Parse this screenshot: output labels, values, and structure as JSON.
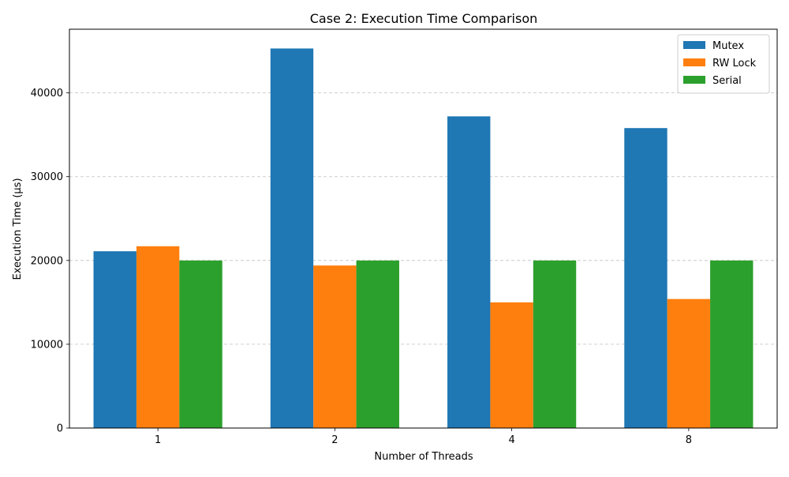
{
  "chart_data": {
    "type": "bar",
    "title": "Case 2: Execution Time Comparison",
    "xlabel": "Number of Threads",
    "ylabel": "Execution Time (µs)",
    "categories": [
      "1",
      "2",
      "4",
      "8"
    ],
    "series": [
      {
        "name": "Mutex",
        "color": "#1f77b4",
        "values": [
          21100,
          45300,
          37200,
          35800
        ]
      },
      {
        "name": "RW Lock",
        "color": "#ff7f0e",
        "values": [
          21700,
          19400,
          15000,
          15400
        ]
      },
      {
        "name": "Serial",
        "color": "#2ca02c",
        "values": [
          20000,
          20000,
          20000,
          20000
        ]
      }
    ],
    "ylim": [
      0,
      47600
    ],
    "yticks": [
      0,
      10000,
      20000,
      30000,
      40000
    ],
    "grid": {
      "axis": "y",
      "style": "dashed",
      "color": "#c0c0c0"
    },
    "legend": {
      "placement": "top-right"
    }
  }
}
